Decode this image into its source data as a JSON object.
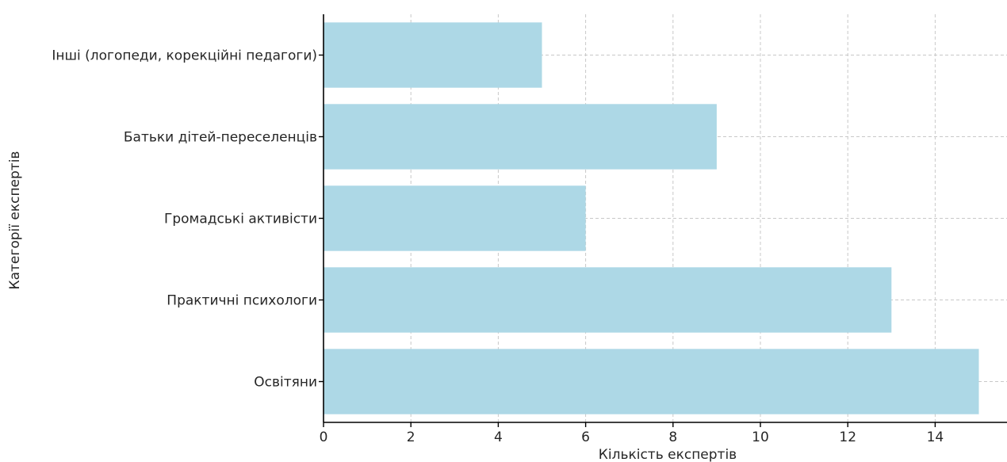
{
  "chart_data": {
    "type": "bar",
    "orientation": "horizontal",
    "categories": [
      "Освітяни",
      "Практичні психологи",
      "Громадські активісти",
      "Батьки дітей-переселенців",
      "Інші (логопеди, корекційні педагоги)"
    ],
    "values": [
      15,
      13,
      6,
      9,
      5
    ],
    "title": "",
    "xlabel": "Кількість експертів",
    "ylabel": "Категорії експертів",
    "xlim": [
      0,
      15.75
    ],
    "xticks": [
      0,
      2,
      4,
      6,
      8,
      10,
      12,
      14
    ],
    "grid": true,
    "bar_color": "#add8e6"
  }
}
